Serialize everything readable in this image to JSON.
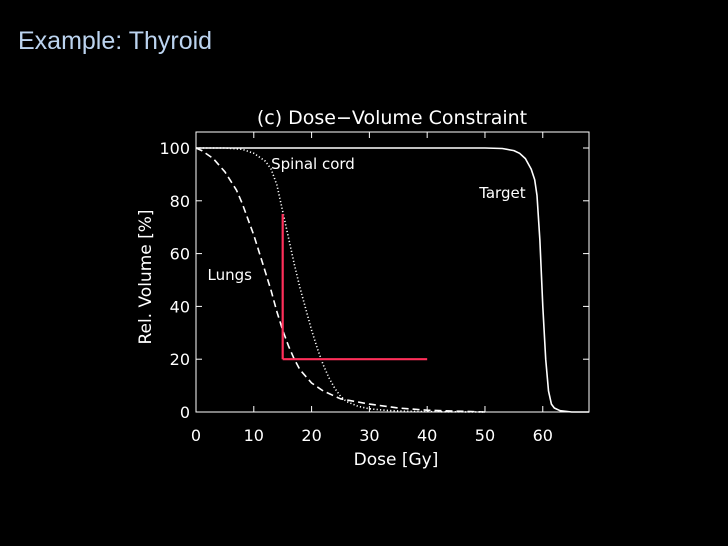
{
  "slide": {
    "title": "Example: Thyroid"
  },
  "chart_data": {
    "type": "line",
    "title": "(c) Dose−Volume Constraint",
    "xlabel": "Dose [Gy]",
    "ylabel": "Rel. Volume [%]",
    "xlim": [
      0,
      68
    ],
    "ylim": [
      0,
      100
    ],
    "xticks": [
      "0",
      "10",
      "20",
      "30",
      "40",
      "50",
      "60"
    ],
    "yticks": [
      "0",
      "20",
      "40",
      "60",
      "80",
      "100"
    ],
    "series": [
      {
        "name": "Target",
        "style": "solid",
        "color": "#ffffff",
        "x": [
          0,
          50,
          53,
          55,
          56,
          57,
          58,
          58.6,
          59,
          59.5,
          60,
          60.5,
          61,
          61.5,
          62,
          63,
          65,
          68
        ],
        "y": [
          100,
          100,
          99.8,
          99,
          98,
          96,
          92,
          88,
          82,
          65,
          40,
          20,
          8,
          3,
          1.5,
          0.5,
          0,
          0
        ]
      },
      {
        "name": "Spinal cord",
        "style": "dotted",
        "color": "#ffffff",
        "x": [
          0,
          5,
          8,
          10,
          12,
          13,
          14,
          15,
          16,
          17,
          18,
          19,
          20,
          21,
          22,
          23,
          24,
          25,
          26,
          28,
          30,
          33,
          36,
          40,
          50
        ],
        "y": [
          100,
          100,
          99.5,
          98,
          95,
          92,
          86,
          76,
          66,
          56,
          47,
          39,
          31,
          24,
          18,
          13,
          9,
          6,
          4,
          2.2,
          1.2,
          0.6,
          0.3,
          0.1,
          0
        ]
      },
      {
        "name": "Lungs",
        "style": "dashed",
        "color": "#ffffff",
        "x": [
          0,
          1,
          3,
          5,
          7,
          8,
          9,
          10,
          11,
          12,
          13,
          14,
          15,
          16,
          17,
          18,
          20,
          22,
          25,
          30,
          35,
          40,
          50
        ],
        "y": [
          100,
          99,
          96,
          91,
          84,
          79,
          73,
          67,
          60,
          53,
          46,
          38,
          31,
          25,
          20,
          16,
          11,
          8,
          5,
          3,
          1.5,
          0.7,
          0
        ]
      }
    ],
    "constraint": {
      "color": "#ff2f5a",
      "vertical_x": 15,
      "vertical_y": [
        20,
        75
      ],
      "horizontal_y": 20,
      "horizontal_x": [
        15,
        40
      ]
    },
    "annotations": [
      {
        "text": "Spinal cord",
        "x": 13,
        "y": 92
      },
      {
        "text": "Target",
        "x": 49,
        "y": 81
      },
      {
        "text": "Lungs",
        "x": 2,
        "y": 50
      }
    ]
  }
}
